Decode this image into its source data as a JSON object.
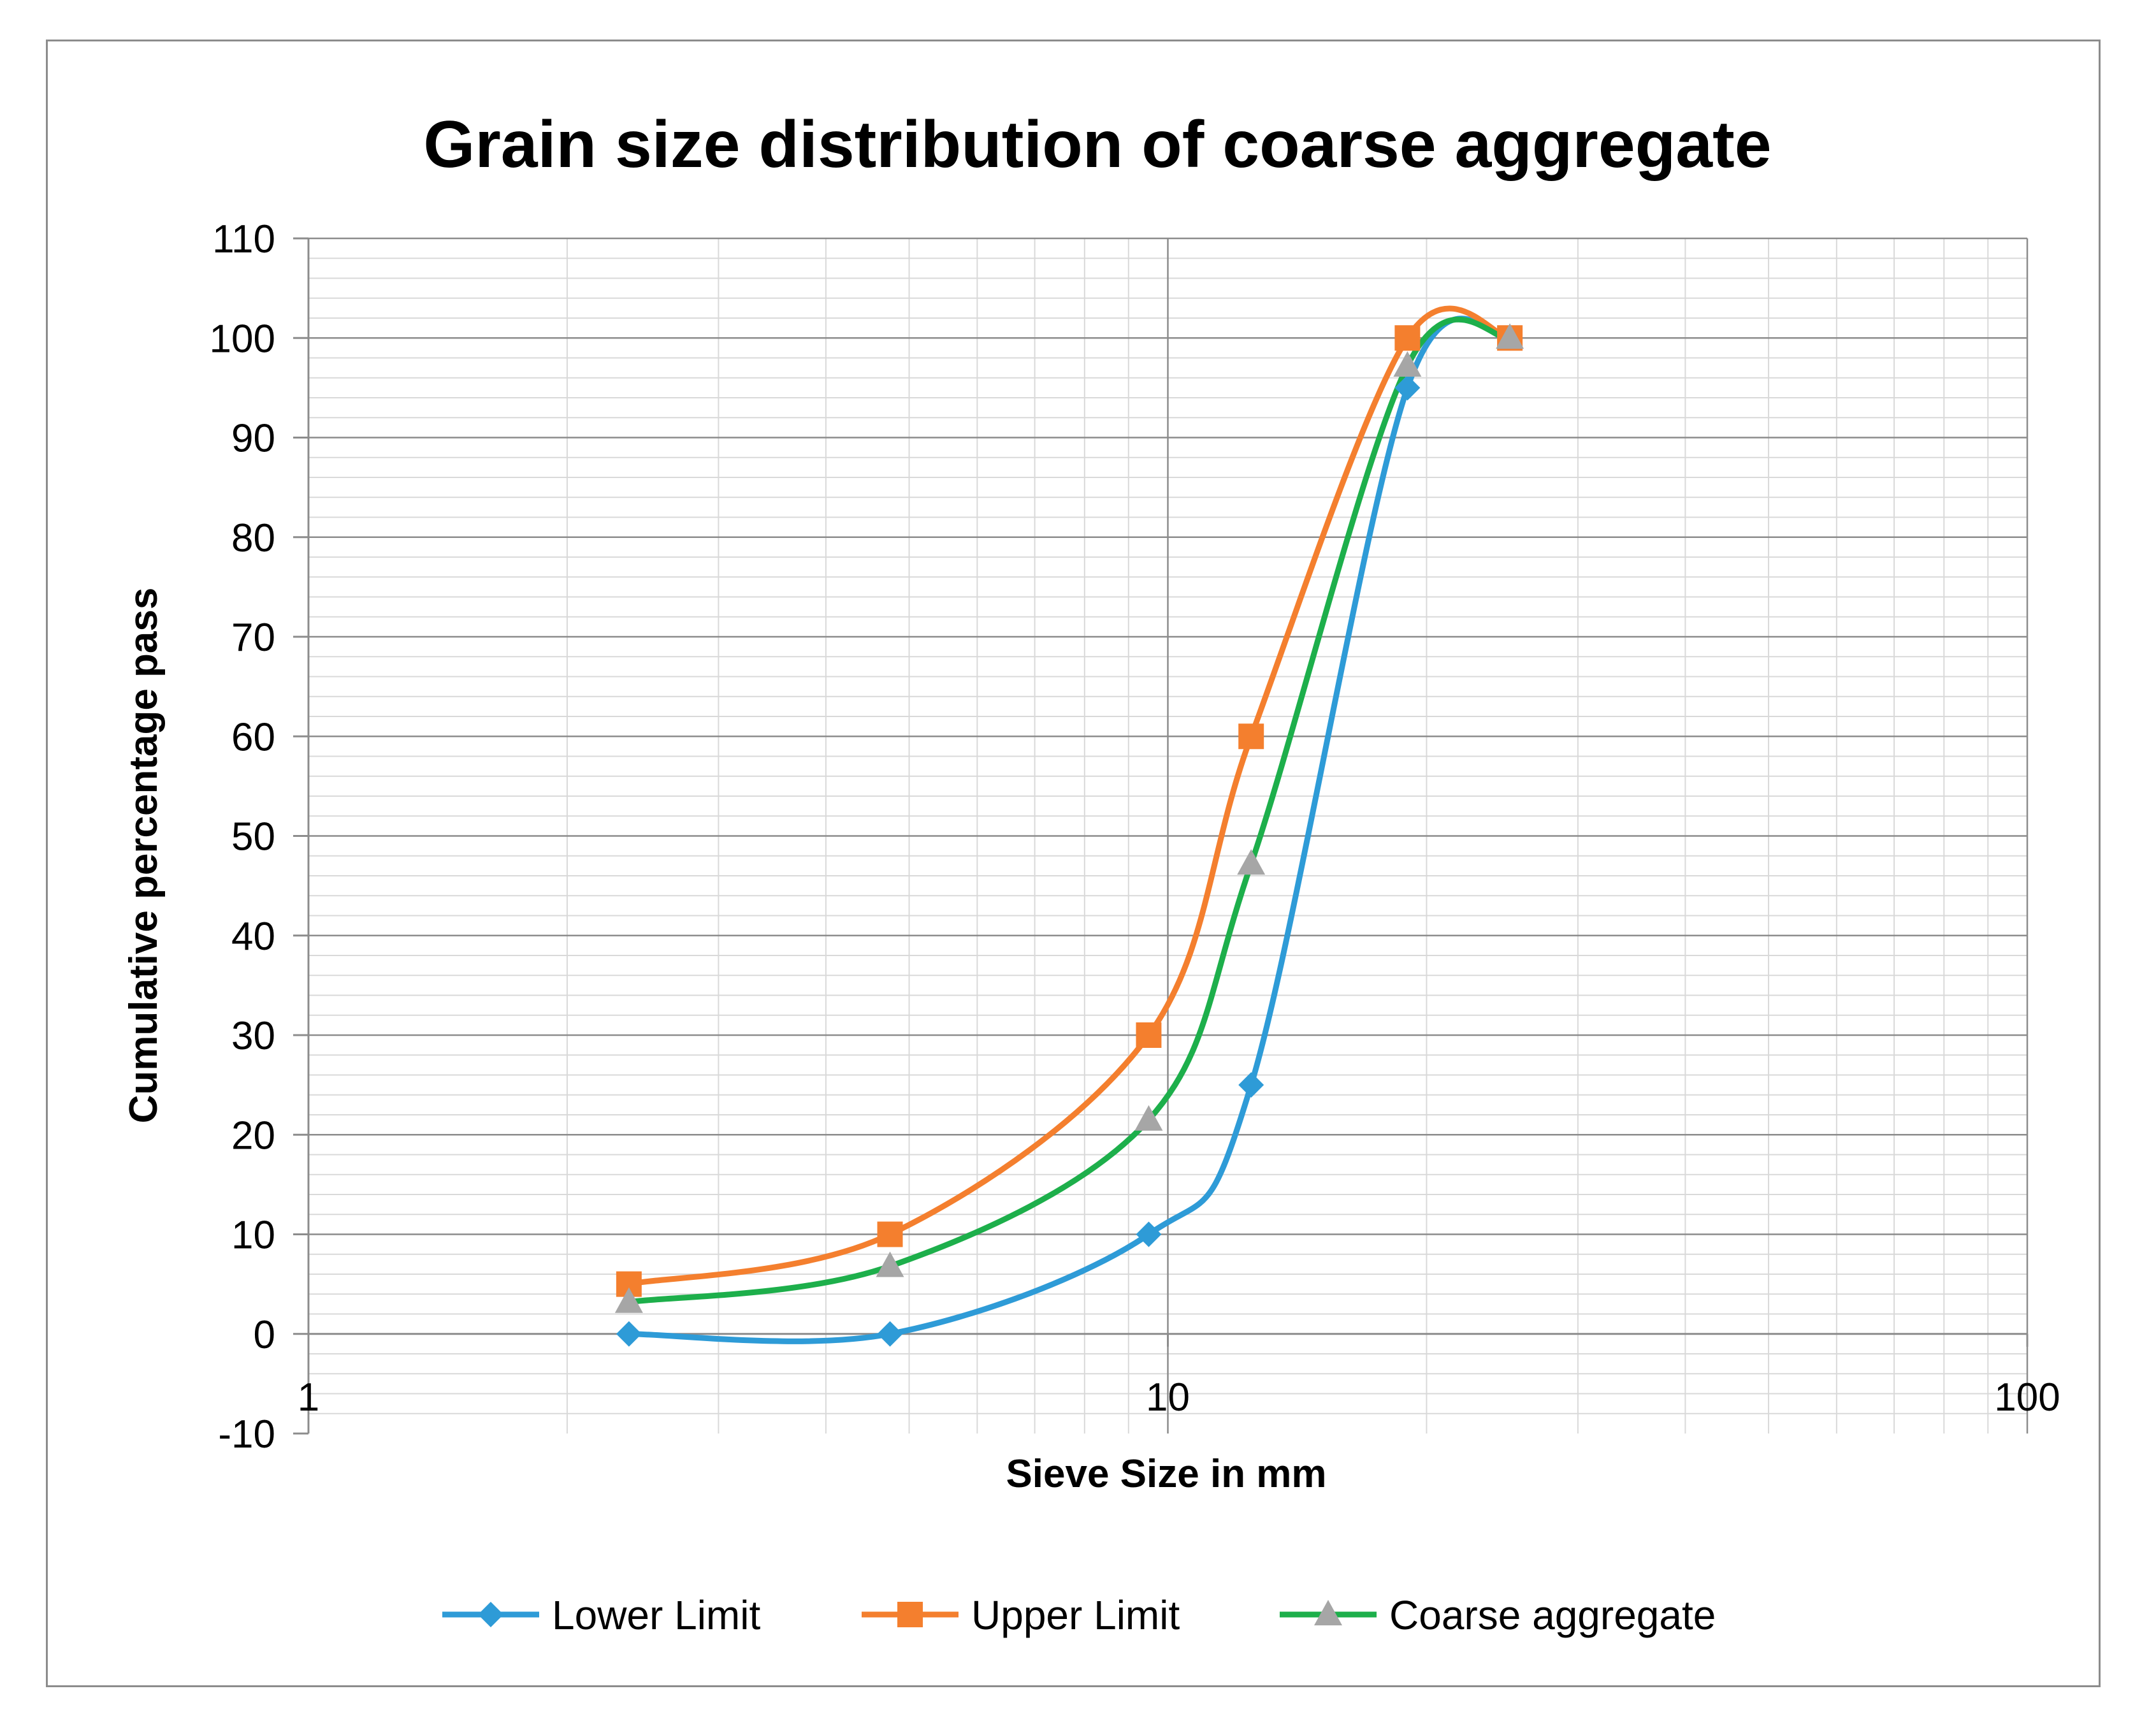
{
  "chart_data": {
    "type": "line",
    "title": "Grain size distribution of coarse aggregate",
    "xlabel": "Sieve Size in mm",
    "ylabel": "Cumulative percentage pass",
    "xscale": "log",
    "xlim": [
      1,
      100
    ],
    "ylim": [
      -10,
      110
    ],
    "xticks": [
      "1",
      "10",
      "100"
    ],
    "yticks": [
      "-10",
      "0",
      "10",
      "20",
      "30",
      "40",
      "50",
      "60",
      "70",
      "80",
      "90",
      "100",
      "110"
    ],
    "grid": true,
    "smooth": true,
    "legend_position": "bottom",
    "x": [
      2.36,
      4.75,
      9.5,
      12.5,
      19,
      25
    ],
    "series": [
      {
        "name": "Lower Limit",
        "color": "#2E9BD7",
        "marker": "diamond",
        "values": [
          0,
          0,
          10,
          25,
          95,
          100
        ]
      },
      {
        "name": "Upper Limit",
        "color": "#F47F2E",
        "marker": "square",
        "values": [
          5,
          10,
          30,
          60,
          100,
          100
        ]
      },
      {
        "name": "Coarse aggregate",
        "color": "#1DAF4B",
        "marker_color": "#A6A6A6",
        "marker": "triangle",
        "values": [
          3.2,
          6.8,
          21.5,
          47.2,
          97.2,
          100
        ]
      }
    ]
  }
}
